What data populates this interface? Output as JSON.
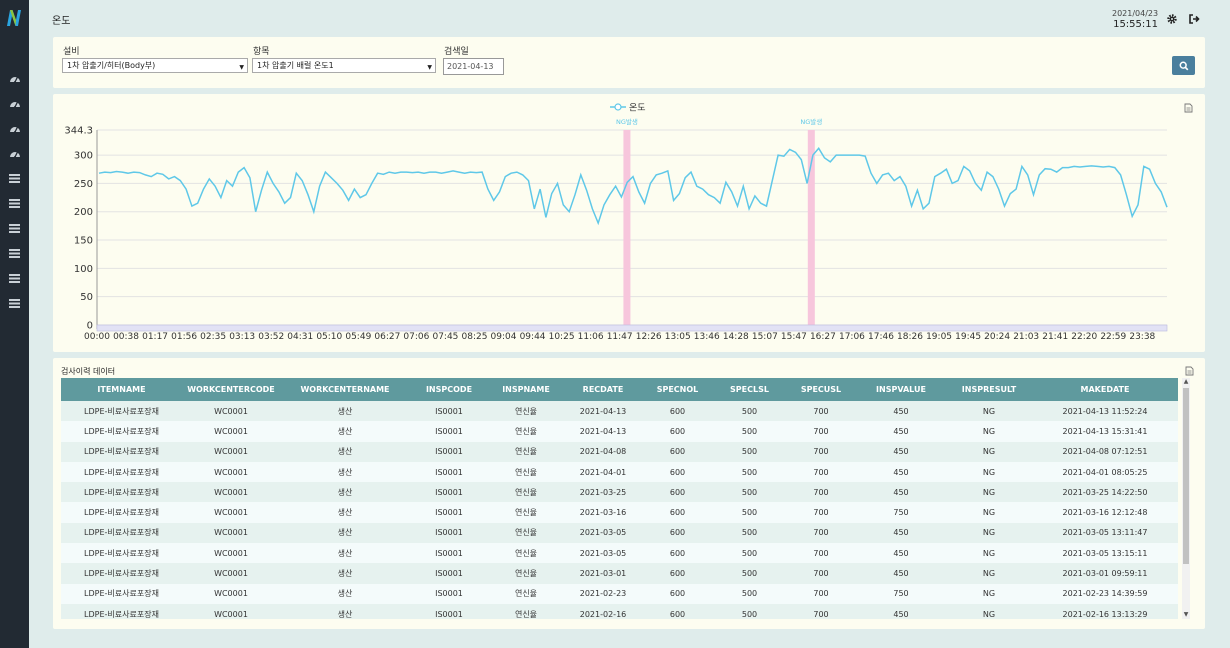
{
  "header": {
    "title": "온도",
    "date": "2021/04/23",
    "time": "15:55:11"
  },
  "sidebar": {
    "logo_letter": "N",
    "icons": [
      "dashboard-icon",
      "dashboard-icon",
      "dashboard-icon",
      "dashboard-icon",
      "list-icon",
      "list-icon",
      "list-icon",
      "list-icon",
      "list-icon",
      "list-icon"
    ]
  },
  "filters": {
    "equipment_label": "설비",
    "equipment_value": "1차 압출기/히터(Body부)",
    "item_label": "항목",
    "item_value": "1차 압출기 배럴 온도1",
    "date_label": "검색일",
    "date_value": "2021-04-13"
  },
  "chart_data": {
    "type": "line",
    "legend": "온도",
    "ylim": [
      0,
      344.3
    ],
    "y_ticks": [
      "0",
      "50",
      "100",
      "150",
      "200",
      "250",
      "300",
      "344.3"
    ],
    "x_ticks": [
      "00:00",
      "00:38",
      "01:17",
      "01:56",
      "02:35",
      "03:13",
      "03:52",
      "04:31",
      "05:10",
      "05:49",
      "06:27",
      "07:06",
      "07:45",
      "08:25",
      "09:04",
      "09:44",
      "10:25",
      "11:06",
      "11:47",
      "12:26",
      "13:05",
      "13:46",
      "14:28",
      "15:07",
      "15:47",
      "16:27",
      "17:06",
      "17:46",
      "18:26",
      "19:05",
      "19:45",
      "20:24",
      "21:03",
      "21:41",
      "22:20",
      "22:59",
      "23:38"
    ],
    "ng_bands": [
      {
        "label": "NG발생",
        "position": 18.25
      },
      {
        "label": "NG발생",
        "position": 24.6
      }
    ],
    "series": [
      {
        "values": [
          268,
          270,
          269,
          271,
          270,
          268,
          270,
          269,
          265,
          262,
          268,
          266,
          258,
          262,
          255,
          240,
          210,
          215,
          240,
          258,
          245,
          225,
          255,
          245,
          270,
          278,
          260,
          200,
          238,
          270,
          250,
          235,
          215,
          225,
          268,
          255,
          230,
          200,
          245,
          270,
          260,
          250,
          238,
          220,
          240,
          225,
          230,
          250,
          268,
          266,
          270,
          268,
          270,
          270,
          269,
          270,
          268,
          270,
          270,
          268,
          270,
          272,
          270,
          268,
          270,
          269,
          270,
          240,
          220,
          235,
          262,
          268,
          270,
          265,
          255,
          205,
          240,
          190,
          232,
          250,
          212,
          200,
          230,
          265,
          238,
          205,
          180,
          212,
          230,
          245,
          226,
          252,
          262,
          235,
          215,
          250,
          265,
          268,
          272,
          220,
          232,
          260,
          270,
          245,
          240,
          230,
          225,
          215,
          252,
          235,
          210,
          245,
          205,
          228,
          215,
          210,
          255,
          300,
          298,
          310,
          305,
          292,
          250,
          300,
          312,
          295,
          288,
          300,
          300,
          300,
          300,
          300,
          298,
          268,
          250,
          265,
          268,
          255,
          262,
          245,
          210,
          238,
          205,
          215,
          262,
          268,
          275,
          250,
          255,
          280,
          272,
          250,
          238,
          270,
          262,
          240,
          210,
          232,
          240,
          280,
          265,
          230,
          265,
          276,
          275,
          270,
          278,
          278,
          280,
          279,
          280,
          281,
          280,
          279,
          280,
          278,
          265,
          230,
          192,
          212,
          280,
          275,
          250,
          235,
          208
        ]
      }
    ]
  },
  "table": {
    "title": "검사이력 데이터",
    "columns": [
      "ITEMNAME",
      "WORKCENTERCODE",
      "WORKCENTERNAME",
      "INSPCODE",
      "INSPNAME",
      "RECDATE",
      "SPECNOL",
      "SPECLSL",
      "SPECUSL",
      "INSPVALUE",
      "INSPRESULT",
      "MAKEDATE"
    ],
    "rows": [
      [
        "LDPE-비료사료포장재",
        "WC0001",
        "생산",
        "IS0001",
        "연신율",
        "2021-04-13",
        "600",
        "500",
        "700",
        "450",
        "NG",
        "2021-04-13 11:52:24"
      ],
      [
        "LDPE-비료사료포장재",
        "WC0001",
        "생산",
        "IS0001",
        "연신율",
        "2021-04-13",
        "600",
        "500",
        "700",
        "450",
        "NG",
        "2021-04-13 15:31:41"
      ],
      [
        "LDPE-비료사료포장재",
        "WC0001",
        "생산",
        "IS0001",
        "연신율",
        "2021-04-08",
        "600",
        "500",
        "700",
        "450",
        "NG",
        "2021-04-08 07:12:51"
      ],
      [
        "LDPE-비료사료포장재",
        "WC0001",
        "생산",
        "IS0001",
        "연신율",
        "2021-04-01",
        "600",
        "500",
        "700",
        "450",
        "NG",
        "2021-04-01 08:05:25"
      ],
      [
        "LDPE-비료사료포장재",
        "WC0001",
        "생산",
        "IS0001",
        "연신율",
        "2021-03-25",
        "600",
        "500",
        "700",
        "450",
        "NG",
        "2021-03-25 14:22:50"
      ],
      [
        "LDPE-비료사료포장재",
        "WC0001",
        "생산",
        "IS0001",
        "연신율",
        "2021-03-16",
        "600",
        "500",
        "700",
        "750",
        "NG",
        "2021-03-16 12:12:48"
      ],
      [
        "LDPE-비료사료포장재",
        "WC0001",
        "생산",
        "IS0001",
        "연신율",
        "2021-03-05",
        "600",
        "500",
        "700",
        "450",
        "NG",
        "2021-03-05 13:11:47"
      ],
      [
        "LDPE-비료사료포장재",
        "WC0001",
        "생산",
        "IS0001",
        "연신율",
        "2021-03-05",
        "600",
        "500",
        "700",
        "450",
        "NG",
        "2021-03-05 13:15:11"
      ],
      [
        "LDPE-비료사료포장재",
        "WC0001",
        "생산",
        "IS0001",
        "연신율",
        "2021-03-01",
        "600",
        "500",
        "700",
        "450",
        "NG",
        "2021-03-01 09:59:11"
      ],
      [
        "LDPE-비료사료포장재",
        "WC0001",
        "생산",
        "IS0001",
        "연신율",
        "2021-02-23",
        "600",
        "500",
        "700",
        "750",
        "NG",
        "2021-02-23 14:39:59"
      ],
      [
        "LDPE-비료사료포장재",
        "WC0001",
        "생산",
        "IS0001",
        "연신율",
        "2021-02-16",
        "600",
        "500",
        "700",
        "450",
        "NG",
        "2021-02-16 13:13:29"
      ]
    ]
  },
  "colors": {
    "sidebar": "#222a33",
    "line": "#5fc8e8",
    "ng_band": "#f7c6dc",
    "table_header": "#5f9a9e",
    "search_button": "#4a7f9d"
  }
}
